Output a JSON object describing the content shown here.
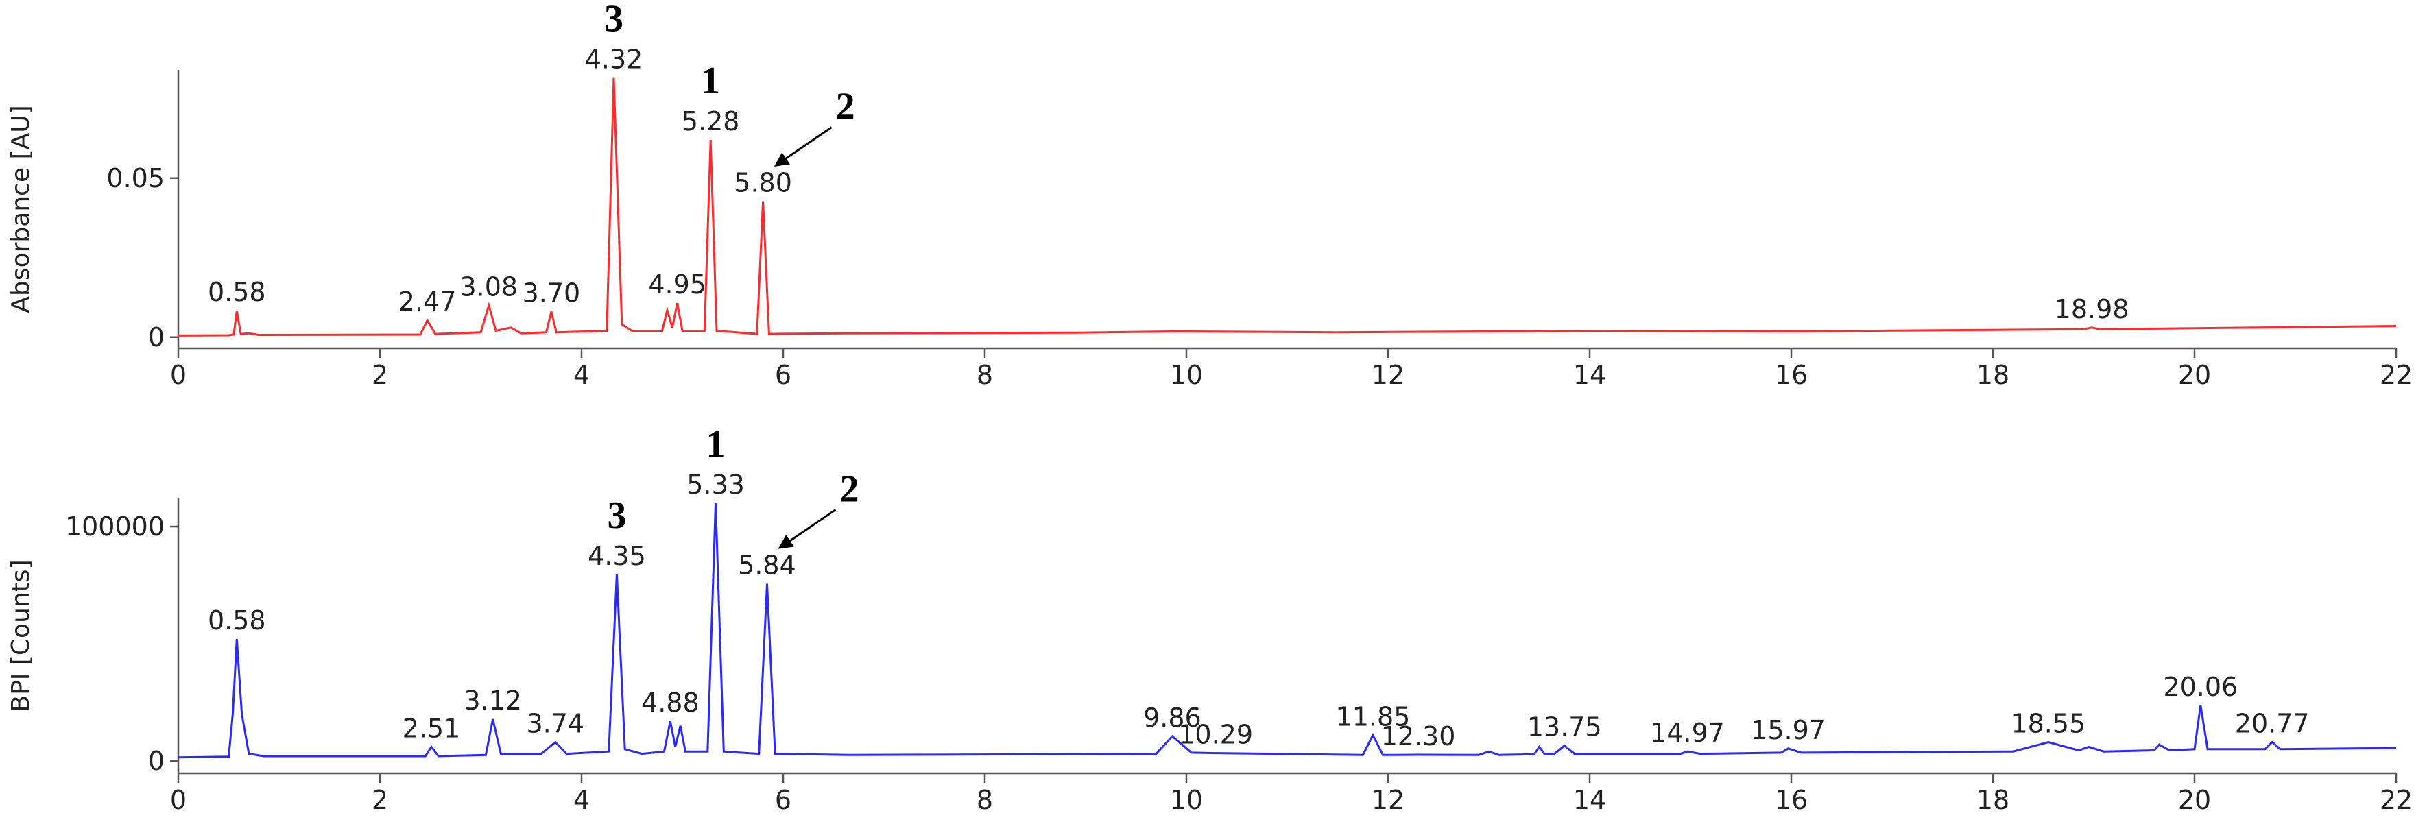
{
  "chart_data": [
    {
      "type": "line",
      "ylabel": "Absorbance [AU]",
      "color": "#ff2a2a",
      "xlim": [
        0,
        22
      ],
      "xticks": [
        0,
        2,
        4,
        6,
        8,
        10,
        12,
        14,
        16,
        18,
        20,
        22
      ],
      "ylim": [
        -0.0035,
        0.084
      ],
      "yticks": [
        0,
        0.05
      ],
      "x": [
        0,
        0.5,
        0.55,
        0.58,
        0.62,
        0.7,
        0.8,
        2.4,
        2.47,
        2.55,
        3.0,
        3.08,
        3.15,
        3.3,
        3.4,
        3.65,
        3.7,
        3.75,
        4.25,
        4.32,
        4.4,
        4.5,
        4.8,
        4.85,
        4.9,
        4.95,
        5.0,
        5.22,
        5.28,
        5.34,
        5.74,
        5.8,
        5.86,
        6.6,
        8.9,
        9.9,
        11.5,
        14.1,
        16,
        18.9,
        18.98,
        19.06,
        20,
        22
      ],
      "values": [
        0.0005,
        0.0006,
        0.0008,
        0.0083,
        0.001,
        0.0012,
        0.0007,
        0.0008,
        0.0053,
        0.001,
        0.0015,
        0.01,
        0.002,
        0.003,
        0.0012,
        0.0015,
        0.008,
        0.0015,
        0.002,
        0.0815,
        0.004,
        0.002,
        0.002,
        0.0085,
        0.003,
        0.0107,
        0.002,
        0.002,
        0.062,
        0.002,
        0.001,
        0.0427,
        0.001,
        0.0012,
        0.0014,
        0.0018,
        0.0015,
        0.002,
        0.0018,
        0.0025,
        0.003,
        0.0025,
        0.0028,
        0.0035
      ],
      "peaks": [
        {
          "value": 0.58,
          "label": "0.58"
        },
        {
          "value": 2.47,
          "label": "2.47"
        },
        {
          "value": 3.08,
          "label": "3.08"
        },
        {
          "value": 3.7,
          "label": "3.70"
        },
        {
          "value": 4.32,
          "label": "4.32"
        },
        {
          "value": 4.95,
          "label": "4.95"
        },
        {
          "value": 5.28,
          "label": "5.28"
        },
        {
          "value": 5.8,
          "label": "5.80"
        },
        {
          "value": 18.98,
          "label": "18.98"
        }
      ],
      "markers": [
        {
          "label": "3",
          "x": 4.32
        },
        {
          "label": "1",
          "x": 5.28
        },
        {
          "label": "2",
          "x": 5.8,
          "arrow": true
        }
      ]
    },
    {
      "type": "line",
      "ylabel": "BPI [Counts]",
      "color": "#2a2aff",
      "xlim": [
        0,
        22
      ],
      "xticks": [
        0,
        2,
        4,
        6,
        8,
        10,
        12,
        14,
        16,
        18,
        20,
        22
      ],
      "ylim": [
        -5300,
        112000
      ],
      "yticks": [
        0,
        100000
      ],
      "x": [
        0,
        0.5,
        0.54,
        0.58,
        0.63,
        0.7,
        0.85,
        2.45,
        2.51,
        2.58,
        3.05,
        3.12,
        3.2,
        3.6,
        3.74,
        3.85,
        4.27,
        4.35,
        4.43,
        4.6,
        4.82,
        4.88,
        4.93,
        4.98,
        5.03,
        5.25,
        5.33,
        5.41,
        5.76,
        5.84,
        5.92,
        6.65,
        9.7,
        9.86,
        10.05,
        10.29,
        11.75,
        11.85,
        11.95,
        12.3,
        12.9,
        13.0,
        13.1,
        13.45,
        13.5,
        13.55,
        13.65,
        13.75,
        13.85,
        14.9,
        14.97,
        15.1,
        15.9,
        15.97,
        16.1,
        18.2,
        18.55,
        18.85,
        18.95,
        19.1,
        19.6,
        19.65,
        19.75,
        20.0,
        20.06,
        20.13,
        20.7,
        20.77,
        20.85,
        22
      ],
      "values": [
        1500,
        1800,
        20000,
        52000,
        20000,
        3000,
        2000,
        2000,
        6000,
        2000,
        2500,
        17800,
        3000,
        3000,
        8000,
        3000,
        4000,
        79600,
        5000,
        3000,
        4000,
        17000,
        6000,
        15000,
        4000,
        4000,
        110000,
        4000,
        3000,
        75600,
        3000,
        2500,
        3000,
        10500,
        3500,
        3300,
        2500,
        11000,
        2500,
        2600,
        2500,
        4000,
        2500,
        2800,
        6000,
        3000,
        3000,
        6500,
        3000,
        3000,
        4000,
        3000,
        3500,
        5300,
        3500,
        4000,
        8000,
        4500,
        6000,
        4000,
        4500,
        7000,
        4500,
        5000,
        23700,
        5000,
        5000,
        8000,
        5000,
        5500
      ],
      "peaks": [
        {
          "value": 0.58,
          "label": "0.58"
        },
        {
          "value": 2.51,
          "label": "2.51"
        },
        {
          "value": 3.12,
          "label": "3.12"
        },
        {
          "value": 3.74,
          "label": "3.74"
        },
        {
          "value": 4.35,
          "label": "4.35"
        },
        {
          "value": 4.88,
          "label": "4.88"
        },
        {
          "value": 5.33,
          "label": "5.33"
        },
        {
          "value": 5.84,
          "label": "5.84"
        },
        {
          "value": 9.86,
          "label": "9.86"
        },
        {
          "value": 10.29,
          "label": "10.29"
        },
        {
          "value": 11.85,
          "label": "11.85"
        },
        {
          "value": 12.3,
          "label": "12.30"
        },
        {
          "value": 13.75,
          "label": "13.75"
        },
        {
          "value": 14.97,
          "label": "14.97"
        },
        {
          "value": 15.97,
          "label": "15.97"
        },
        {
          "value": 18.55,
          "label": "18.55"
        },
        {
          "value": 20.06,
          "label": "20.06"
        },
        {
          "value": 20.77,
          "label": "20.77"
        }
      ],
      "markers": [
        {
          "label": "3",
          "x": 4.35
        },
        {
          "label": "1",
          "x": 5.33
        },
        {
          "label": "2",
          "x": 5.84,
          "arrow": true
        }
      ]
    }
  ]
}
